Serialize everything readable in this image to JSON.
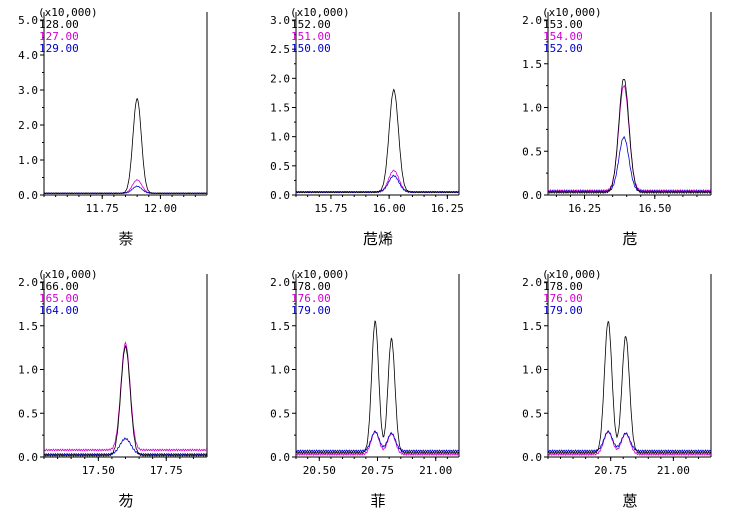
{
  "colors": {
    "black": "#000000",
    "magenta": "#d400d4",
    "blue": "#0000c8"
  },
  "chart_data": [
    {
      "type": "line",
      "title": "萘",
      "multiplier": "(x10,000)",
      "ylim": [
        0,
        5.0
      ],
      "yticks": [
        "0.0",
        "1.0",
        "2.0",
        "3.0",
        "4.0",
        "5.0"
      ],
      "xlim": [
        11.5,
        12.2
      ],
      "xticks": [
        11.75,
        12.0
      ],
      "xtick_labels": [
        "11.75",
        "12.00"
      ],
      "series": [
        {
          "name": "128.00",
          "color": "#000000",
          "baseline": 0.05,
          "peaks": [
            {
              "x": 11.9,
              "h": 2.7,
              "w": 0.018
            }
          ]
        },
        {
          "name": "127.00",
          "color": "#d400d4",
          "baseline": 0.05,
          "peaks": [
            {
              "x": 11.9,
              "h": 0.38,
              "w": 0.02
            }
          ]
        },
        {
          "name": "129.00",
          "color": "#0000c8",
          "baseline": 0.05,
          "peaks": [
            {
              "x": 11.9,
              "h": 0.2,
              "w": 0.02
            }
          ]
        }
      ]
    },
    {
      "type": "line",
      "title": "苊烯",
      "multiplier": "(x10,000)",
      "ylim": [
        0,
        3.0
      ],
      "yticks": [
        "0.0",
        "0.5",
        "1.0",
        "1.5",
        "2.0",
        "2.5",
        "3.0"
      ],
      "xlim": [
        15.6,
        16.3
      ],
      "xticks": [
        15.75,
        16.0,
        16.25
      ],
      "xtick_labels": [
        "15.75",
        "16.00",
        "16.25"
      ],
      "series": [
        {
          "name": "152.00",
          "color": "#000000",
          "baseline": 0.05,
          "peaks": [
            {
              "x": 16.02,
              "h": 1.75,
              "w": 0.02
            }
          ]
        },
        {
          "name": "151.00",
          "color": "#d400d4",
          "baseline": 0.05,
          "peaks": [
            {
              "x": 16.02,
              "h": 0.37,
              "w": 0.022
            }
          ]
        },
        {
          "name": "150.00",
          "color": "#0000c8",
          "baseline": 0.05,
          "peaks": [
            {
              "x": 16.02,
              "h": 0.28,
              "w": 0.022
            }
          ]
        }
      ]
    },
    {
      "type": "line",
      "title": "苊",
      "multiplier": "(x10,000)",
      "ylim": [
        0,
        2.0
      ],
      "yticks": [
        "0.0",
        "0.5",
        "1.0",
        "1.5",
        "2.0"
      ],
      "xlim": [
        16.12,
        16.7
      ],
      "xticks": [
        16.25,
        16.5
      ],
      "xtick_labels": [
        "16.25",
        "16.50"
      ],
      "series": [
        {
          "name": "153.00",
          "color": "#000000",
          "baseline": 0.03,
          "peaks": [
            {
              "x": 16.39,
              "h": 1.3,
              "w": 0.018
            }
          ]
        },
        {
          "name": "154.00",
          "color": "#d400d4",
          "baseline": 0.05,
          "peaks": [
            {
              "x": 16.39,
              "h": 1.2,
              "w": 0.018
            }
          ]
        },
        {
          "name": "152.00",
          "color": "#0000c8",
          "baseline": 0.04,
          "peaks": [
            {
              "x": 16.39,
              "h": 0.62,
              "w": 0.018
            }
          ]
        }
      ]
    },
    {
      "type": "line",
      "title": "芴",
      "multiplier": "(x10,000)",
      "ylim": [
        0,
        2.0
      ],
      "yticks": [
        "0.0",
        "0.5",
        "1.0",
        "1.5",
        "2.0"
      ],
      "xlim": [
        17.3,
        17.9
      ],
      "xticks": [
        17.5,
        17.75
      ],
      "xtick_labels": [
        "17.50",
        "17.75"
      ],
      "series": [
        {
          "name": "166.00",
          "color": "#000000",
          "baseline": 0.02,
          "peaks": [
            {
              "x": 17.6,
              "h": 1.24,
              "w": 0.017
            }
          ]
        },
        {
          "name": "165.00",
          "color": "#d400d4",
          "baseline": 0.08,
          "peaks": [
            {
              "x": 17.6,
              "h": 1.22,
              "w": 0.017
            }
          ]
        },
        {
          "name": "164.00",
          "color": "#0000c8",
          "baseline": 0.03,
          "peaks": [
            {
              "x": 17.6,
              "h": 0.18,
              "w": 0.02
            }
          ]
        }
      ]
    },
    {
      "type": "line",
      "title": "菲",
      "multiplier": "(x10,000)",
      "ylim": [
        0,
        2.0
      ],
      "yticks": [
        "0.0",
        "0.5",
        "1.0",
        "1.5",
        "2.0"
      ],
      "xlim": [
        20.4,
        21.1
      ],
      "xticks": [
        20.5,
        20.75,
        21.0
      ],
      "xtick_labels": [
        "20.50",
        "20.75",
        "21.00"
      ],
      "series": [
        {
          "name": "178.00",
          "color": "#000000",
          "baseline": 0.05,
          "peaks": [
            {
              "x": 20.74,
              "h": 1.5,
              "w": 0.015
            },
            {
              "x": 20.81,
              "h": 1.3,
              "w": 0.015
            }
          ]
        },
        {
          "name": "176.00",
          "color": "#d400d4",
          "baseline": 0.03,
          "peaks": [
            {
              "x": 20.74,
              "h": 0.26,
              "w": 0.017
            },
            {
              "x": 20.81,
              "h": 0.24,
              "w": 0.017
            }
          ]
        },
        {
          "name": "179.00",
          "color": "#0000c8",
          "baseline": 0.07,
          "peaks": [
            {
              "x": 20.74,
              "h": 0.22,
              "w": 0.017
            },
            {
              "x": 20.81,
              "h": 0.2,
              "w": 0.017
            }
          ]
        }
      ]
    },
    {
      "type": "line",
      "title": "蒽",
      "multiplier": "(x10,000)",
      "ylim": [
        0,
        2.0
      ],
      "yticks": [
        "0.0",
        "0.5",
        "1.0",
        "1.5",
        "2.0"
      ],
      "xlim": [
        20.5,
        21.15
      ],
      "xticks": [
        20.75,
        21.0
      ],
      "xtick_labels": [
        "20.75",
        "21.00"
      ],
      "series": [
        {
          "name": "178.00",
          "color": "#000000",
          "baseline": 0.05,
          "peaks": [
            {
              "x": 20.74,
              "h": 1.5,
              "w": 0.015
            },
            {
              "x": 20.81,
              "h": 1.33,
              "w": 0.015
            }
          ]
        },
        {
          "name": "176.00",
          "color": "#d400d4",
          "baseline": 0.03,
          "peaks": [
            {
              "x": 20.74,
              "h": 0.26,
              "w": 0.017
            },
            {
              "x": 20.81,
              "h": 0.24,
              "w": 0.017
            }
          ]
        },
        {
          "name": "179.00",
          "color": "#0000c8",
          "baseline": 0.07,
          "peaks": [
            {
              "x": 20.74,
              "h": 0.22,
              "w": 0.017
            },
            {
              "x": 20.81,
              "h": 0.2,
              "w": 0.017
            }
          ]
        }
      ]
    }
  ]
}
